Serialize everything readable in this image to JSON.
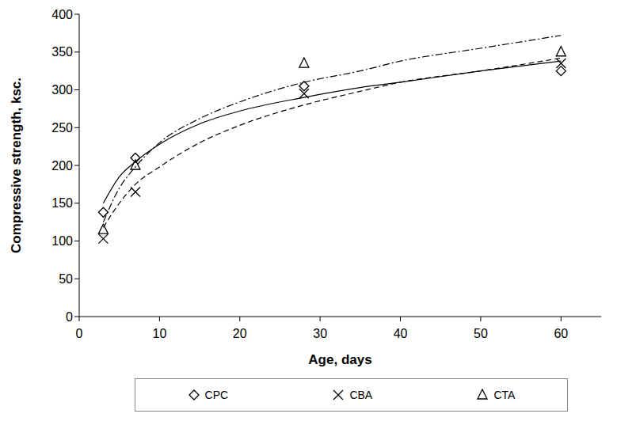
{
  "chart_data": {
    "type": "scatter",
    "x_label": "Age, days",
    "y_label": "Compressive strength, ksc.",
    "xlim": [
      0,
      65
    ],
    "xticks": [
      0,
      10,
      20,
      30,
      40,
      50,
      60
    ],
    "ylim": [
      0,
      400
    ],
    "yticks": [
      0,
      50,
      100,
      150,
      200,
      250,
      300,
      350,
      400
    ],
    "grid": false,
    "legend": "bottom",
    "series": [
      {
        "name": "CPC",
        "color": "#000000",
        "marker": "diamond",
        "x": [
          3,
          7,
          28,
          60
        ],
        "values": [
          138,
          210,
          305,
          325
        ],
        "line_style": "solid",
        "trend": {
          "x": [
            3,
            5,
            7,
            10,
            15,
            20,
            28,
            35,
            40,
            50,
            60
          ],
          "values": [
            150,
            185,
            205,
            228,
            255,
            272,
            290,
            303,
            310,
            325,
            338
          ]
        }
      },
      {
        "name": "CBA",
        "color": "#000000",
        "marker": "x",
        "x": [
          3,
          7,
          28,
          60
        ],
        "values": [
          103,
          165,
          295,
          335
        ],
        "line_style": "dashed",
        "trend": {
          "x": [
            3,
            5,
            7,
            10,
            15,
            20,
            28,
            35,
            40,
            50,
            60
          ],
          "values": [
            118,
            150,
            175,
            198,
            230,
            253,
            280,
            298,
            310,
            325,
            342
          ]
        }
      },
      {
        "name": "CTA",
        "color": "#000000",
        "marker": "triangle",
        "x": [
          3,
          7,
          28,
          60
        ],
        "values": [
          115,
          200,
          335,
          350
        ],
        "line_style": "dashdot",
        "trend": {
          "x": [
            3,
            5,
            7,
            10,
            15,
            20,
            28,
            35,
            40,
            50,
            60
          ],
          "values": [
            125,
            170,
            198,
            230,
            262,
            284,
            310,
            325,
            338,
            355,
            372
          ]
        }
      }
    ]
  }
}
